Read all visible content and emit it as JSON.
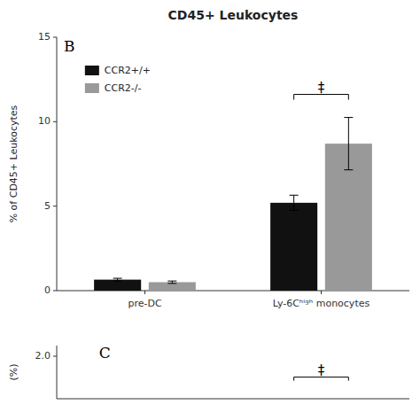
{
  "chart_data": [
    {
      "type": "bar",
      "title": "CD45+ Leukocytes",
      "panel_label": "B",
      "ylabel": "% of CD45+ Leukocytes",
      "categories": [
        "pre-DC",
        "Ly-6Cʰⁱᵍʰ monocytes"
      ],
      "series": [
        {
          "name": "CCR2+/+",
          "color": "#111111",
          "values": [
            0.65,
            5.2
          ],
          "errors": [
            0.08,
            0.45
          ]
        },
        {
          "name": "CCR2-/-",
          "color": "#999999",
          "values": [
            0.5,
            8.7
          ],
          "errors": [
            0.07,
            1.55
          ]
        }
      ],
      "ylim": [
        0,
        15
      ],
      "yticks": [
        0,
        5,
        10,
        15
      ],
      "legend": "upper left",
      "grid": false,
      "annotations": [
        {
          "text": "‡",
          "category": 1,
          "y": 11.3
        }
      ]
    },
    {
      "type": "bar",
      "panel_label": "C",
      "ylabel": "(%)",
      "ylim": [
        0,
        2.5
      ],
      "yticks": [
        {
          "value": 2,
          "label": "2.0"
        }
      ],
      "tick_labels": "y",
      "grid": false,
      "annotations": [
        {
          "text": "‡",
          "category": 1,
          "y": 0.85
        }
      ]
    }
  ]
}
